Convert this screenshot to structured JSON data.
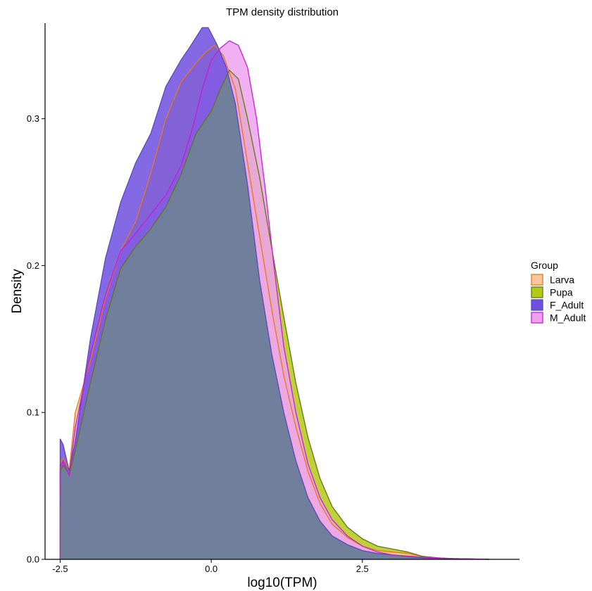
{
  "chart_data": {
    "type": "area",
    "title": "TPM density distribution",
    "xlabel": "log10(TPM)",
    "ylabel": "Density",
    "xlim": [
      -2.75,
      5.1
    ],
    "ylim": [
      0,
      0.365
    ],
    "x_ticks": [
      {
        "value": -2.5,
        "label": "-2.5"
      },
      {
        "value": 0,
        "label": "0.0"
      },
      {
        "value": 2.5,
        "label": "2.5"
      }
    ],
    "y_ticks": [
      {
        "value": 0,
        "label": "0.0"
      },
      {
        "value": 0.1,
        "label": "0.1"
      },
      {
        "value": 0.2,
        "label": "0.2"
      },
      {
        "value": 0.3,
        "label": "0.3"
      }
    ],
    "grid": false,
    "legend": {
      "title": "Group",
      "position": "right"
    },
    "series": [
      {
        "name": "Larva",
        "fill": "#F8C79B",
        "stroke": "#E8771A",
        "points": [
          [
            -2.5,
            0
          ],
          [
            -2.5,
            0.065
          ],
          [
            -2.45,
            0.069
          ],
          [
            -2.35,
            0.061
          ],
          [
            -2.25,
            0.1
          ],
          [
            -2.0,
            0.135
          ],
          [
            -1.75,
            0.178
          ],
          [
            -1.5,
            0.21
          ],
          [
            -1.25,
            0.23
          ],
          [
            -1.0,
            0.263
          ],
          [
            -0.75,
            0.3
          ],
          [
            -0.5,
            0.325
          ],
          [
            -0.25,
            0.338
          ],
          [
            -0.1,
            0.345
          ],
          [
            0.05,
            0.35
          ],
          [
            0.2,
            0.343
          ],
          [
            0.4,
            0.32
          ],
          [
            0.6,
            0.27
          ],
          [
            0.8,
            0.22
          ],
          [
            1.0,
            0.17
          ],
          [
            1.2,
            0.125
          ],
          [
            1.4,
            0.09
          ],
          [
            1.6,
            0.06
          ],
          [
            1.8,
            0.038
          ],
          [
            2.0,
            0.024
          ],
          [
            2.25,
            0.015
          ],
          [
            2.5,
            0.009
          ],
          [
            2.75,
            0.006
          ],
          [
            3.0,
            0.005
          ],
          [
            3.25,
            0.004
          ],
          [
            3.5,
            0.002
          ],
          [
            3.75,
            0.001
          ],
          [
            4.0,
            0.0005
          ],
          [
            4.6,
            0.0
          ]
        ]
      },
      {
        "name": "Pupa",
        "fill": "#B4C817",
        "stroke": "#5F7A10",
        "points": [
          [
            -2.5,
            0
          ],
          [
            -2.5,
            0.06
          ],
          [
            -2.45,
            0.064
          ],
          [
            -2.35,
            0.058
          ],
          [
            -2.25,
            0.074
          ],
          [
            -2.0,
            0.12
          ],
          [
            -1.75,
            0.163
          ],
          [
            -1.5,
            0.198
          ],
          [
            -1.25,
            0.213
          ],
          [
            -1.0,
            0.225
          ],
          [
            -0.75,
            0.24
          ],
          [
            -0.5,
            0.262
          ],
          [
            -0.25,
            0.29
          ],
          [
            0.0,
            0.305
          ],
          [
            0.15,
            0.32
          ],
          [
            0.3,
            0.333
          ],
          [
            0.45,
            0.327
          ],
          [
            0.6,
            0.3
          ],
          [
            0.8,
            0.26
          ],
          [
            1.0,
            0.212
          ],
          [
            1.2,
            0.165
          ],
          [
            1.4,
            0.12
          ],
          [
            1.6,
            0.083
          ],
          [
            1.8,
            0.055
          ],
          [
            2.0,
            0.036
          ],
          [
            2.25,
            0.022
          ],
          [
            2.5,
            0.014
          ],
          [
            2.75,
            0.009
          ],
          [
            3.0,
            0.007
          ],
          [
            3.25,
            0.005
          ],
          [
            3.5,
            0.002
          ],
          [
            3.75,
            0.001
          ],
          [
            4.0,
            0.0005
          ],
          [
            4.6,
            0.0
          ]
        ]
      },
      {
        "name": "F_Adult",
        "fill": "#6E4FE0",
        "stroke": "#5A48C0",
        "points": [
          [
            -2.5,
            0
          ],
          [
            -2.5,
            0.082
          ],
          [
            -2.45,
            0.078
          ],
          [
            -2.35,
            0.06
          ],
          [
            -2.25,
            0.08
          ],
          [
            -2.0,
            0.15
          ],
          [
            -1.75,
            0.205
          ],
          [
            -1.5,
            0.243
          ],
          [
            -1.25,
            0.27
          ],
          [
            -1.0,
            0.29
          ],
          [
            -0.75,
            0.322
          ],
          [
            -0.5,
            0.34
          ],
          [
            -0.35,
            0.349
          ],
          [
            -0.15,
            0.362
          ],
          [
            -0.05,
            0.362
          ],
          [
            0.1,
            0.35
          ],
          [
            0.25,
            0.335
          ],
          [
            0.4,
            0.31
          ],
          [
            0.6,
            0.255
          ],
          [
            0.8,
            0.19
          ],
          [
            1.0,
            0.14
          ],
          [
            1.2,
            0.1
          ],
          [
            1.4,
            0.067
          ],
          [
            1.6,
            0.042
          ],
          [
            1.8,
            0.026
          ],
          [
            2.0,
            0.016
          ],
          [
            2.25,
            0.01
          ],
          [
            2.5,
            0.006
          ],
          [
            2.75,
            0.004
          ],
          [
            3.0,
            0.003
          ],
          [
            3.25,
            0.002
          ],
          [
            3.5,
            0.001
          ],
          [
            4.0,
            0.0004
          ],
          [
            4.6,
            0.0
          ]
        ]
      },
      {
        "name": "M_Adult",
        "fill": "#EDA2F0",
        "stroke": "#C61FD2",
        "points": [
          [
            -2.5,
            0
          ],
          [
            -2.5,
            0.063
          ],
          [
            -2.45,
            0.067
          ],
          [
            -2.35,
            0.057
          ],
          [
            -2.25,
            0.09
          ],
          [
            -2.0,
            0.14
          ],
          [
            -1.75,
            0.18
          ],
          [
            -1.5,
            0.21
          ],
          [
            -1.25,
            0.222
          ],
          [
            -1.0,
            0.235
          ],
          [
            -0.75,
            0.248
          ],
          [
            -0.5,
            0.268
          ],
          [
            -0.3,
            0.295
          ],
          [
            -0.15,
            0.32
          ],
          [
            0.0,
            0.34
          ],
          [
            0.15,
            0.348
          ],
          [
            0.3,
            0.353
          ],
          [
            0.45,
            0.35
          ],
          [
            0.6,
            0.335
          ],
          [
            0.75,
            0.3
          ],
          [
            0.9,
            0.25
          ],
          [
            1.05,
            0.195
          ],
          [
            1.2,
            0.145
          ],
          [
            1.4,
            0.1
          ],
          [
            1.6,
            0.065
          ],
          [
            1.8,
            0.042
          ],
          [
            2.0,
            0.027
          ],
          [
            2.25,
            0.016
          ],
          [
            2.5,
            0.009
          ],
          [
            2.75,
            0.005
          ],
          [
            3.0,
            0.003
          ],
          [
            3.5,
            0.0015
          ],
          [
            4.0,
            0.0005
          ],
          [
            4.6,
            0.0
          ]
        ]
      }
    ]
  }
}
